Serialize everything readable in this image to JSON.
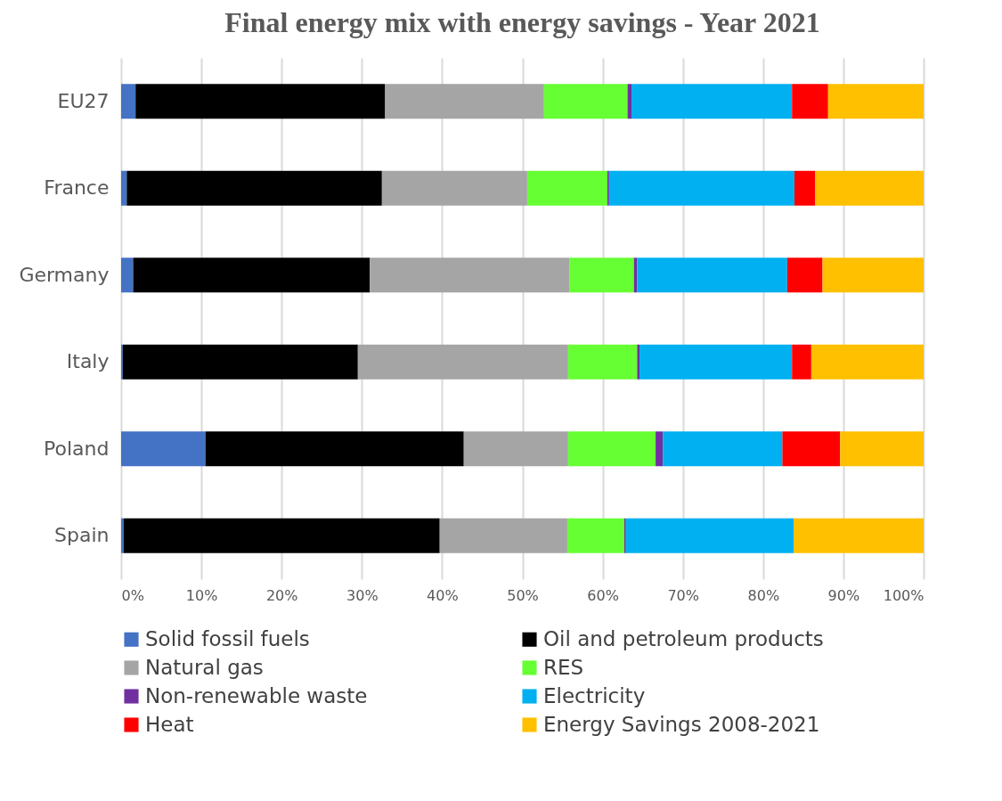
{
  "chart_data": {
    "type": "bar",
    "orientation": "horizontal",
    "stacked": true,
    "title": "Final energy mix with energy savings - Year 2021",
    "categories": [
      "EU27",
      "France",
      "Germany",
      "Italy",
      "Poland",
      "Spain"
    ],
    "series": [
      {
        "name": "Solid fossil fuels",
        "color": "#4472c4",
        "values": [
          1.8,
          0.7,
          1.5,
          0.2,
          10.5,
          0.3
        ]
      },
      {
        "name": "Oil and petroleum products",
        "color": "#000000",
        "values": [
          31.1,
          31.8,
          29.5,
          29.3,
          32.2,
          39.4
        ]
      },
      {
        "name": "Natural gas",
        "color": "#a5a5a5",
        "values": [
          19.8,
          18.1,
          24.9,
          26.2,
          13.0,
          15.9
        ]
      },
      {
        "name": "RES",
        "color": "#66ff33",
        "values": [
          10.4,
          10.0,
          8.0,
          8.6,
          10.9,
          7.1
        ]
      },
      {
        "name": "Non-renewable waste",
        "color": "#7030a0",
        "values": [
          0.5,
          0.2,
          0.4,
          0.3,
          0.9,
          0.2
        ]
      },
      {
        "name": "Electricity",
        "color": "#00b0f0",
        "values": [
          20.0,
          23.1,
          18.7,
          19.0,
          14.9,
          20.9
        ]
      },
      {
        "name": "Heat",
        "color": "#ff0000",
        "values": [
          4.5,
          2.6,
          4.4,
          2.4,
          7.2,
          0
        ]
      },
      {
        "name": "Energy Savings 2008-2021",
        "color": "#ffc000",
        "values": [
          11.9,
          13.5,
          12.6,
          14.0,
          10.4,
          16.2
        ]
      }
    ],
    "xlim": [
      0,
      100
    ],
    "xticks": [
      {
        "value": 0,
        "label": "0%"
      },
      {
        "value": 10,
        "label": "10%"
      },
      {
        "value": 20,
        "label": "20%"
      },
      {
        "value": 30,
        "label": "30%"
      },
      {
        "value": 40,
        "label": "40%"
      },
      {
        "value": 50,
        "label": "50%"
      },
      {
        "value": 60,
        "label": "60%"
      },
      {
        "value": 70,
        "label": "70%"
      },
      {
        "value": 80,
        "label": "80%"
      },
      {
        "value": 90,
        "label": "90%"
      },
      {
        "value": 100,
        "label": "100%"
      }
    ],
    "grid": "x",
    "legend": "bottom"
  }
}
